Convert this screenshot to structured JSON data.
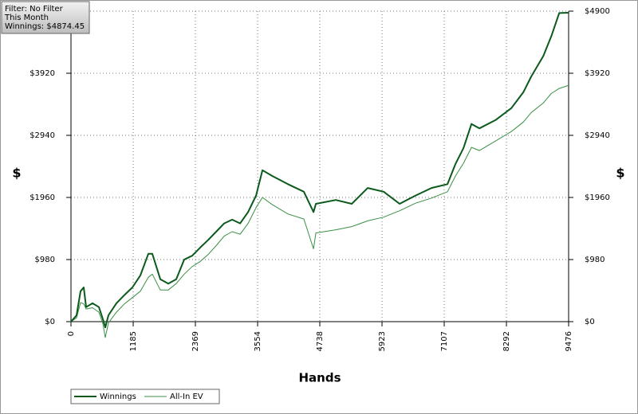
{
  "chart_data": {
    "type": "line",
    "xlabel": "Hands",
    "ylabel": "$",
    "annotations": [
      "Filter: No Filter",
      "This Month",
      "Winnings: $4874.45"
    ],
    "grid": true,
    "legend": "lower left",
    "xlim": [
      0,
      9476
    ],
    "ylim": [
      0,
      4900
    ],
    "xticks": [
      0,
      1185,
      2369,
      3554,
      4738,
      5923,
      7107,
      8292,
      9476
    ],
    "yticks": [
      {
        "value": 0,
        "label": "$0"
      },
      {
        "value": 980,
        "label": "$980"
      },
      {
        "value": 1960,
        "label": "$1960"
      },
      {
        "value": 2940,
        "label": "$2940"
      },
      {
        "value": 3920,
        "label": "$3920"
      },
      {
        "value": 4900,
        "label": "$4900"
      }
    ],
    "x": [
      0,
      106,
      182,
      243,
      289,
      410,
      532,
      608,
      653,
      714,
      866,
      1018,
      1170,
      1321,
      1473,
      1549,
      1701,
      1853,
      2005,
      2157,
      2309,
      2461,
      2613,
      2765,
      2917,
      3069,
      3221,
      3373,
      3525,
      3646,
      3828,
      4131,
      4435,
      4618,
      4663,
      5043,
      5347,
      5650,
      5954,
      6258,
      6562,
      6866,
      7170,
      7322,
      7474,
      7626,
      7778,
      8082,
      8386,
      8613,
      8765,
      8993,
      9145,
      9297,
      9476
    ],
    "series": [
      {
        "name": "Winnings",
        "color": "#0b5a1c",
        "values": [
          0,
          100,
          480,
          540,
          230,
          290,
          230,
          40,
          -90,
          100,
          290,
          420,
          540,
          730,
          1070,
          1070,
          670,
          600,
          670,
          980,
          1040,
          1170,
          1290,
          1420,
          1550,
          1610,
          1550,
          1730,
          1990,
          2390,
          2300,
          2170,
          2050,
          1730,
          1860,
          1920,
          1860,
          2110,
          2050,
          1860,
          1990,
          2110,
          2170,
          2490,
          2740,
          3120,
          3050,
          3180,
          3370,
          3620,
          3870,
          4190,
          4500,
          4870,
          4874.45
        ]
      },
      {
        "name": "All-In EV",
        "color": "#3a8f45",
        "values": [
          0,
          60,
          300,
          280,
          200,
          220,
          150,
          -30,
          -250,
          -20,
          150,
          280,
          380,
          480,
          700,
          750,
          500,
          500,
          600,
          750,
          870,
          950,
          1060,
          1200,
          1350,
          1420,
          1380,
          1550,
          1800,
          1960,
          1850,
          1700,
          1620,
          1150,
          1400,
          1450,
          1500,
          1590,
          1650,
          1750,
          1870,
          1950,
          2050,
          2300,
          2500,
          2750,
          2700,
          2850,
          3000,
          3150,
          3300,
          3450,
          3600,
          3680,
          3730
        ]
      }
    ]
  }
}
